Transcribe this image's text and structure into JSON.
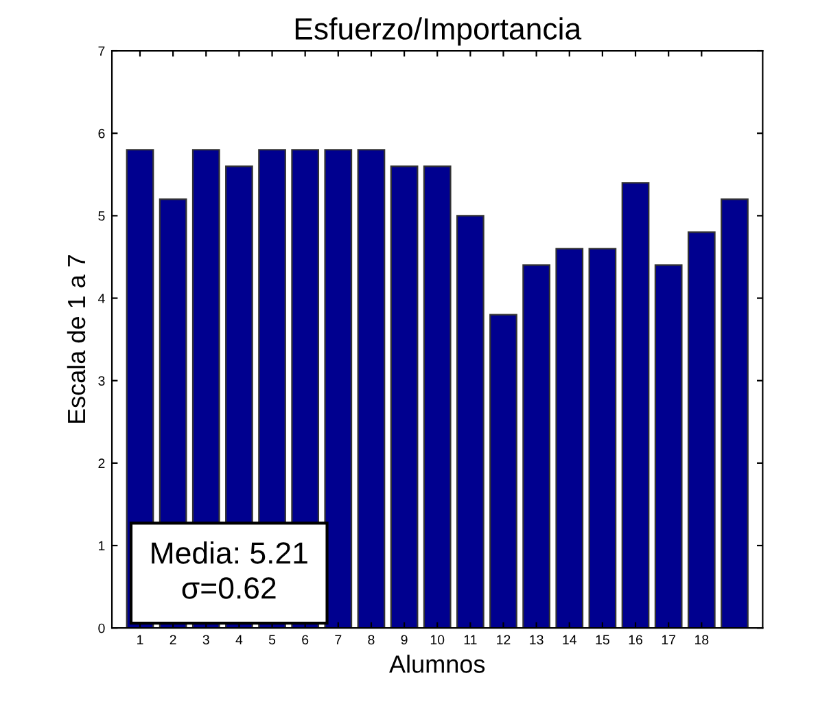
{
  "chart_data": {
    "type": "bar",
    "title": "Esfuerzo/Importancia",
    "xlabel": "Alumnos",
    "ylabel": "Escala de 1 a 7",
    "categories": [
      "1",
      "2",
      "3",
      "4",
      "5",
      "6",
      "7",
      "8",
      "9",
      "10",
      "11",
      "12",
      "13",
      "14",
      "15",
      "16",
      "17",
      "18",
      null
    ],
    "values": [
      5.8,
      5.2,
      5.8,
      5.6,
      5.8,
      5.8,
      5.8,
      5.8,
      5.6,
      5.6,
      5.0,
      3.8,
      4.4,
      4.6,
      4.6,
      5.4,
      4.4,
      4.8,
      5.2
    ],
    "color": "#00008f",
    "ylim": [
      0,
      7
    ],
    "yticks": [
      0,
      1,
      2,
      3,
      4,
      5,
      6,
      7
    ],
    "grid": false,
    "annotations": [
      "Media: 5.21",
      "σ=0.62"
    ]
  }
}
